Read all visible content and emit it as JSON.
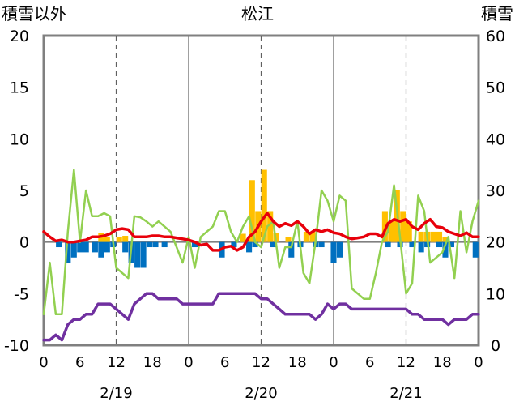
{
  "chart_data": {
    "type": "line",
    "title": "松江",
    "left_axis_label": "積雪以外",
    "right_axis_label": "積雪",
    "left_ylim": [
      -10,
      20
    ],
    "left_ticks": [
      "-10",
      "-5",
      "0",
      "5",
      "10",
      "15",
      "20"
    ],
    "right_ylim": [
      0,
      60
    ],
    "right_ticks": [
      "0",
      "10",
      "20",
      "30",
      "40",
      "50",
      "60"
    ],
    "x_hours_range": [
      0,
      72
    ],
    "hour_tick_labels": [
      "0",
      "6",
      "12",
      "18",
      "0",
      "6",
      "12",
      "18",
      "0",
      "6",
      "12",
      "18",
      "0"
    ],
    "date_labels": [
      "2/19",
      "2/20",
      "2/21"
    ],
    "grid": "dashed vertical at 12h, solid vertical at day boundaries",
    "colors": {
      "temperature": "#e8000b",
      "snow_depth": "#7030a0",
      "snowfall": "#ffc000",
      "precip_diff": "#0070c0",
      "humidity_like": "#92d050",
      "axis": "#808080"
    },
    "series": [
      {
        "key": "orange_bars",
        "kind": "bar",
        "axis": "left",
        "points": [
          [
            9.5,
            0.9
          ],
          [
            10.5,
            0.5
          ],
          [
            12.5,
            0.5
          ],
          [
            13.5,
            0.6
          ],
          [
            33,
            0.8
          ],
          [
            34.5,
            6
          ],
          [
            35.5,
            3
          ],
          [
            36.5,
            7
          ],
          [
            37.5,
            3
          ],
          [
            38.5,
            0.9
          ],
          [
            40.5,
            0.5
          ],
          [
            43.5,
            1
          ],
          [
            44.5,
            1
          ],
          [
            56.5,
            3
          ],
          [
            57.5,
            2
          ],
          [
            58.5,
            5
          ],
          [
            59.5,
            3
          ],
          [
            60.5,
            2
          ],
          [
            62.5,
            1
          ],
          [
            63.5,
            1
          ],
          [
            64.5,
            1
          ],
          [
            65.5,
            1
          ],
          [
            66.5,
            0.5
          ]
        ]
      },
      {
        "key": "blue_bars",
        "kind": "bar",
        "axis": "left",
        "points": [
          [
            2.5,
            -0.5
          ],
          [
            4,
            -2
          ],
          [
            5,
            -1.5
          ],
          [
            6,
            -1
          ],
          [
            7,
            -1
          ],
          [
            8.5,
            -1
          ],
          [
            9.5,
            -1.5
          ],
          [
            10.5,
            -1
          ],
          [
            11.5,
            -0.5
          ],
          [
            13.5,
            -1
          ],
          [
            14.5,
            -2
          ],
          [
            15.5,
            -2.5
          ],
          [
            16.5,
            -2.5
          ],
          [
            17.5,
            -0.5
          ],
          [
            18.5,
            -0.5
          ],
          [
            20,
            -0.5
          ],
          [
            25,
            -0.5
          ],
          [
            29.5,
            -1.5
          ],
          [
            31.5,
            -0.5
          ],
          [
            34,
            -1
          ],
          [
            35,
            -0.5
          ],
          [
            38,
            -0.5
          ],
          [
            41,
            -1.5
          ],
          [
            42.5,
            -0.5
          ],
          [
            45,
            -0.5
          ],
          [
            46,
            -0.5
          ],
          [
            48,
            -2
          ],
          [
            49,
            -1.5
          ],
          [
            57,
            -0.5
          ],
          [
            59,
            -0.5
          ],
          [
            61,
            -0.5
          ],
          [
            62.5,
            -1
          ],
          [
            63.5,
            -0.5
          ],
          [
            65.5,
            -0.5
          ],
          [
            66.5,
            -1.5
          ],
          [
            67.5,
            -0.5
          ],
          [
            71.5,
            -1.5
          ]
        ]
      },
      {
        "key": "red_line",
        "kind": "line",
        "axis": "left",
        "points": [
          [
            0,
            1
          ],
          [
            1,
            0.5
          ],
          [
            2,
            0.1
          ],
          [
            3,
            0.2
          ],
          [
            4,
            0
          ],
          [
            5,
            0
          ],
          [
            6,
            0.1
          ],
          [
            7,
            0.2
          ],
          [
            8,
            0.5
          ],
          [
            9,
            0.5
          ],
          [
            10,
            0.6
          ],
          [
            11,
            0.8
          ],
          [
            12,
            1.2
          ],
          [
            13,
            1.3
          ],
          [
            14,
            1.2
          ],
          [
            15,
            0.5
          ],
          [
            16,
            0.5
          ],
          [
            17,
            0.5
          ],
          [
            18,
            0.6
          ],
          [
            19,
            0.6
          ],
          [
            20,
            0.5
          ],
          [
            21,
            0.5
          ],
          [
            22,
            0.4
          ],
          [
            23,
            0.3
          ],
          [
            24,
            0.2
          ],
          [
            25,
            0
          ],
          [
            26,
            -0.3
          ],
          [
            27,
            -0.2
          ],
          [
            28,
            -0.8
          ],
          [
            29,
            -0.8
          ],
          [
            30,
            -0.5
          ],
          [
            31,
            -0.4
          ],
          [
            32,
            -0.8
          ],
          [
            33,
            -0.5
          ],
          [
            34,
            0.5
          ],
          [
            35,
            1
          ],
          [
            36,
            2
          ],
          [
            37,
            2.8
          ],
          [
            38,
            2
          ],
          [
            39,
            1.5
          ],
          [
            40,
            1.8
          ],
          [
            41,
            1.6
          ],
          [
            42,
            2
          ],
          [
            43,
            1.5
          ],
          [
            44,
            0.8
          ],
          [
            45,
            1.2
          ],
          [
            46,
            1
          ],
          [
            47,
            1.2
          ],
          [
            48,
            0.9
          ],
          [
            49,
            0.8
          ],
          [
            50,
            0.5
          ],
          [
            51,
            0.3
          ],
          [
            52,
            0.4
          ],
          [
            53,
            0.5
          ],
          [
            54,
            0.8
          ],
          [
            55,
            0.8
          ],
          [
            56,
            0.5
          ],
          [
            57,
            1.8
          ],
          [
            58,
            2.2
          ],
          [
            59,
            2
          ],
          [
            60,
            2.2
          ],
          [
            61,
            1.5
          ],
          [
            62,
            1.2
          ],
          [
            63,
            1.8
          ],
          [
            64,
            2.2
          ],
          [
            65,
            1.5
          ],
          [
            66,
            1.4
          ],
          [
            67,
            1
          ],
          [
            68,
            0.8
          ],
          [
            69,
            0.6
          ],
          [
            70,
            0.9
          ],
          [
            71,
            0.5
          ],
          [
            72,
            0.5
          ]
        ]
      },
      {
        "key": "green_line",
        "kind": "line",
        "axis": "left",
        "points": [
          [
            0,
            -7
          ],
          [
            1,
            -2
          ],
          [
            2,
            -7
          ],
          [
            3,
            -7
          ],
          [
            4,
            1
          ],
          [
            5,
            7
          ],
          [
            6,
            0
          ],
          [
            7,
            5
          ],
          [
            8,
            2.5
          ],
          [
            9,
            2.5
          ],
          [
            10,
            2.8
          ],
          [
            11,
            2.5
          ],
          [
            12,
            -2.5
          ],
          [
            13,
            -3
          ],
          [
            14,
            -3.5
          ],
          [
            15,
            2.5
          ],
          [
            16,
            2.4
          ],
          [
            17,
            2
          ],
          [
            18,
            1.5
          ],
          [
            19,
            2
          ],
          [
            20,
            1.5
          ],
          [
            21,
            1
          ],
          [
            22,
            -0.5
          ],
          [
            23,
            -2
          ],
          [
            24,
            0.5
          ],
          [
            25,
            -2.5
          ],
          [
            26,
            0.5
          ],
          [
            27,
            1
          ],
          [
            28,
            1.5
          ],
          [
            29,
            3
          ],
          [
            30,
            3
          ],
          [
            31,
            1
          ],
          [
            32,
            0
          ],
          [
            33,
            1.5
          ],
          [
            34,
            2.5
          ],
          [
            35,
            0
          ],
          [
            36,
            -0.5
          ],
          [
            37,
            1.5
          ],
          [
            38,
            2
          ],
          [
            39,
            -2.5
          ],
          [
            40,
            -0.5
          ],
          [
            41,
            -0.5
          ],
          [
            42,
            2
          ],
          [
            43,
            -3
          ],
          [
            44,
            -4
          ],
          [
            45,
            0
          ],
          [
            46,
            5
          ],
          [
            47,
            4
          ],
          [
            48,
            2
          ],
          [
            49,
            4.5
          ],
          [
            50,
            4
          ],
          [
            51,
            -4.5
          ],
          [
            52,
            -5
          ],
          [
            53,
            -5.5
          ],
          [
            54,
            -5.5
          ],
          [
            55,
            -3
          ],
          [
            56,
            0
          ],
          [
            57,
            1
          ],
          [
            58,
            5.5
          ],
          [
            59,
            0.5
          ],
          [
            60,
            -5
          ],
          [
            61,
            -4
          ],
          [
            62,
            4.5
          ],
          [
            63,
            3
          ],
          [
            64,
            -2
          ],
          [
            65,
            -1.5
          ],
          [
            66,
            -1
          ],
          [
            67,
            0.5
          ],
          [
            68,
            -3.5
          ],
          [
            69,
            3
          ],
          [
            70,
            -1
          ],
          [
            71,
            2
          ],
          [
            72,
            4
          ]
        ]
      },
      {
        "key": "purple_line",
        "kind": "line",
        "axis": "right",
        "points": [
          [
            0,
            1
          ],
          [
            1,
            1
          ],
          [
            2,
            2
          ],
          [
            3,
            1
          ],
          [
            4,
            4
          ],
          [
            5,
            5
          ],
          [
            6,
            5
          ],
          [
            7,
            6
          ],
          [
            8,
            6
          ],
          [
            9,
            8
          ],
          [
            10,
            8
          ],
          [
            11,
            8
          ],
          [
            12,
            7
          ],
          [
            13,
            6
          ],
          [
            14,
            5
          ],
          [
            15,
            8
          ],
          [
            16,
            9
          ],
          [
            17,
            10
          ],
          [
            18,
            10
          ],
          [
            19,
            9
          ],
          [
            20,
            9
          ],
          [
            21,
            9
          ],
          [
            22,
            9
          ],
          [
            23,
            8
          ],
          [
            24,
            8
          ],
          [
            25,
            8
          ],
          [
            26,
            8
          ],
          [
            27,
            8
          ],
          [
            28,
            8
          ],
          [
            29,
            10
          ],
          [
            30,
            10
          ],
          [
            31,
            10
          ],
          [
            32,
            10
          ],
          [
            33,
            10
          ],
          [
            34,
            10
          ],
          [
            35,
            10
          ],
          [
            36,
            9
          ],
          [
            37,
            9
          ],
          [
            38,
            8
          ],
          [
            39,
            7
          ],
          [
            40,
            6
          ],
          [
            41,
            6
          ],
          [
            42,
            6
          ],
          [
            43,
            6
          ],
          [
            44,
            6
          ],
          [
            45,
            5
          ],
          [
            46,
            6
          ],
          [
            47,
            8
          ],
          [
            48,
            7
          ],
          [
            49,
            8
          ],
          [
            50,
            8
          ],
          [
            51,
            7
          ],
          [
            52,
            7
          ],
          [
            53,
            7
          ],
          [
            54,
            7
          ],
          [
            55,
            7
          ],
          [
            56,
            7
          ],
          [
            57,
            7
          ],
          [
            58,
            7
          ],
          [
            59,
            7
          ],
          [
            60,
            7
          ],
          [
            61,
            6
          ],
          [
            62,
            6
          ],
          [
            63,
            5
          ],
          [
            64,
            5
          ],
          [
            65,
            5
          ],
          [
            66,
            5
          ],
          [
            67,
            4
          ],
          [
            68,
            5
          ],
          [
            69,
            5
          ],
          [
            70,
            5
          ],
          [
            71,
            6
          ],
          [
            72,
            6
          ]
        ]
      }
    ]
  }
}
